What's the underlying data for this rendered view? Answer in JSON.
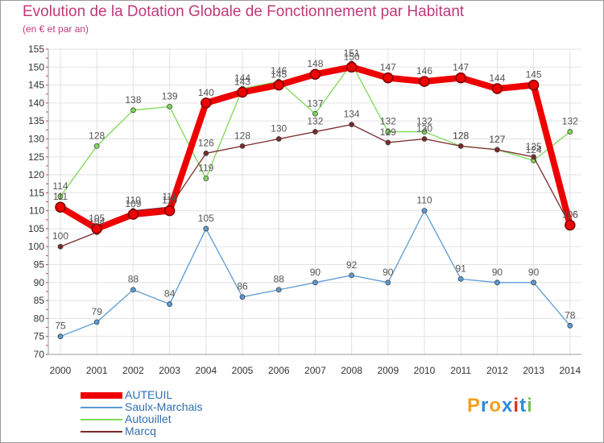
{
  "title": "Evolution de la Dotation Globale de Fonctionnement par Habitant",
  "subtitle": "(en € et par an)",
  "chart_data": {
    "type": "line",
    "x": [
      2000,
      2001,
      2002,
      2003,
      2004,
      2005,
      2006,
      2007,
      2008,
      2009,
      2010,
      2011,
      2012,
      2013,
      2014
    ],
    "ylim": [
      70,
      155
    ],
    "yticks": [
      70,
      75,
      80,
      85,
      90,
      95,
      100,
      105,
      110,
      115,
      120,
      125,
      130,
      135,
      140,
      145,
      150,
      155
    ],
    "grid": true,
    "series": [
      {
        "name": "AUTEUIL",
        "color": "#ee0000",
        "values": [
          111,
          105,
          109,
          110,
          140,
          143,
          145,
          148,
          150,
          147,
          146,
          147,
          144,
          145,
          106
        ]
      },
      {
        "name": "Saulx-Marchais",
        "color": "#5b9bd5",
        "values": [
          75,
          79,
          88,
          84,
          105,
          86,
          88,
          90,
          92,
          90,
          110,
          91,
          90,
          90,
          78
        ]
      },
      {
        "name": "Autouillet",
        "color": "#7ed957",
        "values": [
          114,
          128,
          138,
          139,
          119,
          144,
          146,
          137,
          151,
          132,
          132,
          128,
          127,
          124,
          132
        ]
      },
      {
        "name": "Marcq",
        "color": "#7a2a2a",
        "values": [
          100,
          104,
          110,
          111,
          126,
          128,
          130,
          132,
          134,
          129,
          130,
          128,
          127,
          125,
          106
        ]
      }
    ]
  },
  "logo": {
    "letters": [
      "P",
      "r",
      "o",
      "x",
      "i",
      "t",
      "i"
    ],
    "colors": [
      "#f0a020",
      "#2e8bd8",
      "#f0a020",
      "#2e8bd8",
      "#e03020",
      "#2e8bd8",
      "#7cc050"
    ]
  }
}
